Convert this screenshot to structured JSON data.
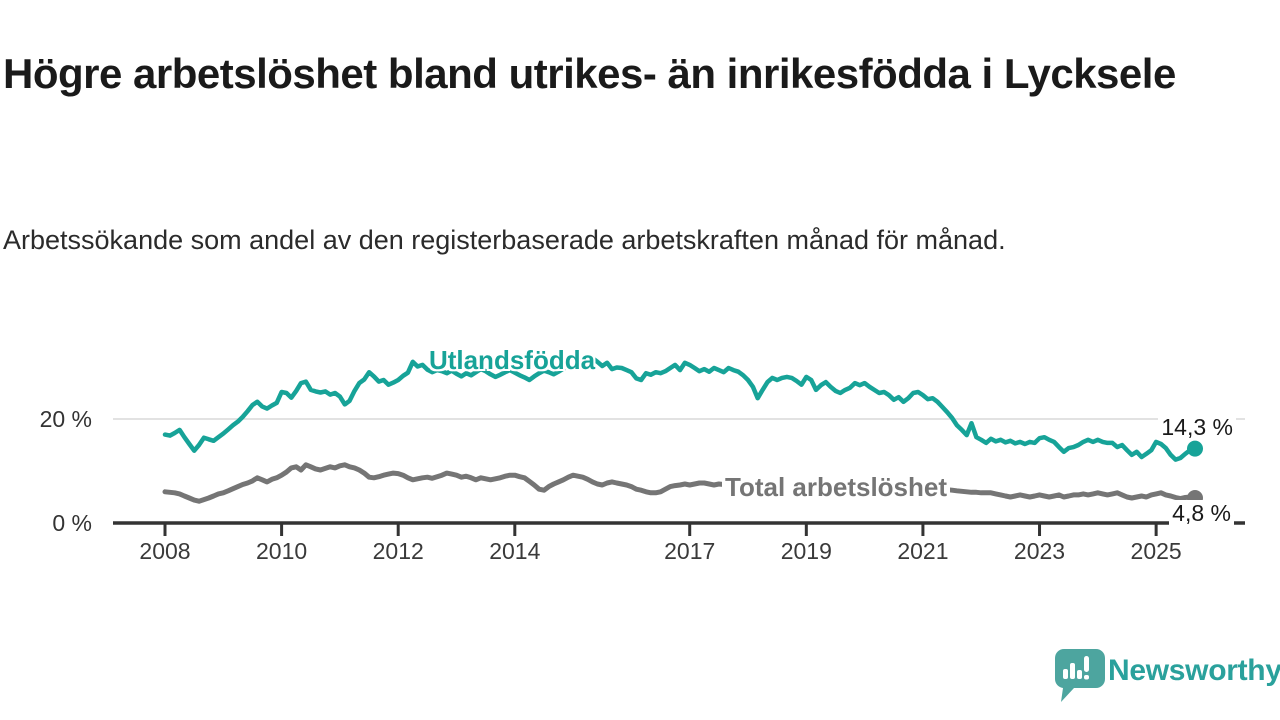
{
  "title": "Högre arbetslöshet bland utrikes- än inrikesfödda i Lycksele",
  "subtitle": "Arbetssökande som andel av den registerbaserade arbetskraften månad för månad.",
  "branding": {
    "logo_text": "Newsworthy",
    "wordmark_color": "#2aa19c",
    "bubble_color": "#4da59f"
  },
  "colors": {
    "foreign_line": "#17a398",
    "total_line": "#757575",
    "axis": "#333333",
    "gridline": "#d9d9d9",
    "title_text": "#1a1a1a"
  },
  "chart_data": {
    "type": "line",
    "x_start_year": 2008,
    "points_per_year": 12,
    "x_end_label_implied": "2025",
    "x_ticks": [
      2008,
      2010,
      2012,
      2014,
      2017,
      2019,
      2021,
      2023,
      2025
    ],
    "y_ticks": [
      {
        "value": 0,
        "label": "0 %"
      },
      {
        "value": 20,
        "label": "20 %"
      }
    ],
    "ylim": [
      0,
      35
    ],
    "grid": "y-at-20-only",
    "series": [
      {
        "name": "Utlandsfödda",
        "label": "Utlandsfödda",
        "end_label": "14,3 %",
        "end_value": 14.3,
        "color": "#17a398",
        "values": [
          17.0,
          16.8,
          17.3,
          17.9,
          16.5,
          15.2,
          13.9,
          15.0,
          16.4,
          16.1,
          15.8,
          16.5,
          17.2,
          18.0,
          18.8,
          19.5,
          20.4,
          21.5,
          22.7,
          23.3,
          22.4,
          22.0,
          22.6,
          23.1,
          25.2,
          25.0,
          24.1,
          25.4,
          26.9,
          27.2,
          25.6,
          25.3,
          25.1,
          25.3,
          24.7,
          25.0,
          24.3,
          22.8,
          23.5,
          25.4,
          26.9,
          27.6,
          29.0,
          28.2,
          27.2,
          27.5,
          26.6,
          27.0,
          27.5,
          28.3,
          28.9,
          31.0,
          30.1,
          30.4,
          29.5,
          29.0,
          29.4,
          29.2,
          28.8,
          29.3,
          28.7,
          28.2,
          28.8,
          28.4,
          29.0,
          29.6,
          29.2,
          28.6,
          28.1,
          28.5,
          29.0,
          29.4,
          28.9,
          28.4,
          28.0,
          27.5,
          28.2,
          28.8,
          29.3,
          29.0,
          28.6,
          29.1,
          29.7,
          30.2,
          29.8,
          30.4,
          30.9,
          31.3,
          31.7,
          31.0,
          30.2,
          30.8,
          29.6,
          29.9,
          29.8,
          29.4,
          29.0,
          27.8,
          27.5,
          28.8,
          28.5,
          29.0,
          28.8,
          29.2,
          29.8,
          30.4,
          29.4,
          30.8,
          30.4,
          29.8,
          29.2,
          29.6,
          29.1,
          29.8,
          29.4,
          29.0,
          29.8,
          29.4,
          29.1,
          28.4,
          27.5,
          26.2,
          24.0,
          25.6,
          27.1,
          27.9,
          27.5,
          27.9,
          28.1,
          27.9,
          27.3,
          26.6,
          28.1,
          27.5,
          25.6,
          26.5,
          27.1,
          26.2,
          25.4,
          25.0,
          25.6,
          26.0,
          26.9,
          26.5,
          26.9,
          26.2,
          25.6,
          25.0,
          25.2,
          24.6,
          23.7,
          24.2,
          23.3,
          24.0,
          25.0,
          25.2,
          24.6,
          23.8,
          24.0,
          23.3,
          22.3,
          21.3,
          20.2,
          18.8,
          17.9,
          16.9,
          19.2,
          16.5,
          16.0,
          15.4,
          16.2,
          15.7,
          16.0,
          15.5,
          15.8,
          15.3,
          15.6,
          15.2,
          15.6,
          15.4,
          16.3,
          16.5,
          16.0,
          15.6,
          14.6,
          13.7,
          14.4,
          14.6,
          15.0,
          15.6,
          16.0,
          15.6,
          16.0,
          15.6,
          15.4,
          15.4,
          14.6,
          15.0,
          14.0,
          13.1,
          13.7,
          12.7,
          13.3,
          14.0,
          15.6,
          15.2,
          14.4,
          13.1,
          12.2,
          12.5,
          13.3,
          14.0,
          14.3
        ]
      },
      {
        "name": "Total arbetslöshet",
        "label": "Total arbetslöshet",
        "end_label": "4,8 %",
        "end_value": 4.8,
        "color": "#757575",
        "values": [
          6.0,
          5.9,
          5.8,
          5.6,
          5.2,
          4.8,
          4.4,
          4.2,
          4.5,
          4.8,
          5.2,
          5.6,
          5.8,
          6.2,
          6.6,
          7.0,
          7.4,
          7.7,
          8.1,
          8.7,
          8.3,
          7.9,
          8.4,
          8.7,
          9.2,
          9.8,
          10.6,
          10.8,
          10.2,
          11.2,
          10.8,
          10.4,
          10.2,
          10.5,
          10.8,
          10.6,
          11.0,
          11.2,
          10.8,
          10.6,
          10.2,
          9.6,
          8.8,
          8.7,
          8.9,
          9.2,
          9.4,
          9.6,
          9.5,
          9.2,
          8.7,
          8.3,
          8.5,
          8.7,
          8.8,
          8.6,
          8.9,
          9.2,
          9.6,
          9.4,
          9.2,
          8.8,
          9.0,
          8.7,
          8.3,
          8.7,
          8.5,
          8.3,
          8.5,
          8.7,
          9.0,
          9.2,
          9.2,
          8.9,
          8.7,
          8.0,
          7.3,
          6.5,
          6.3,
          7.0,
          7.5,
          7.9,
          8.3,
          8.8,
          9.2,
          9.0,
          8.8,
          8.4,
          7.9,
          7.5,
          7.3,
          7.7,
          7.9,
          7.7,
          7.5,
          7.3,
          7.0,
          6.5,
          6.3,
          6.0,
          5.8,
          5.8,
          6.0,
          6.5,
          7.0,
          7.2,
          7.3,
          7.5,
          7.3,
          7.5,
          7.7,
          7.7,
          7.5,
          7.3,
          7.5,
          7.4,
          7.2,
          7.0,
          6.9,
          6.8,
          6.7,
          6.6,
          6.4,
          6.3,
          6.2,
          6.1,
          6.0,
          6.0,
          6.1,
          6.2,
          6.3,
          6.4,
          6.5,
          6.4,
          6.3,
          6.2,
          6.1,
          6.0,
          6.0,
          6.1,
          6.2,
          6.3,
          6.4,
          6.5,
          6.8,
          7.0,
          7.4,
          7.8,
          8.0,
          8.1,
          8.0,
          7.8,
          7.6,
          7.4,
          7.2,
          7.0,
          6.9,
          6.8,
          6.7,
          6.6,
          6.5,
          6.4,
          6.3,
          6.2,
          6.1,
          6.0,
          5.9,
          5.9,
          5.8,
          5.8,
          5.8,
          5.6,
          5.4,
          5.2,
          5.0,
          5.2,
          5.4,
          5.2,
          5.0,
          5.2,
          5.4,
          5.2,
          5.0,
          5.2,
          5.4,
          5.0,
          5.2,
          5.4,
          5.4,
          5.6,
          5.4,
          5.6,
          5.8,
          5.6,
          5.4,
          5.6,
          5.8,
          5.4,
          5.0,
          4.8,
          5.0,
          5.2,
          5.0,
          5.4,
          5.6,
          5.8,
          5.4,
          5.2,
          4.9,
          4.7,
          4.9,
          5.0,
          4.8
        ]
      }
    ]
  }
}
